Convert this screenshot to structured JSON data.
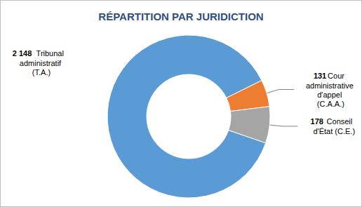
{
  "chart_data": {
    "type": "pie",
    "title": "RÉPARTITION PAR JURIDICTION",
    "categories": [
      "Tribunal administratif (T.A.)",
      "Cour administrative d'appel (C.A.A.)",
      "Conseil d'État (C.E.)"
    ],
    "values": [
      2148,
      131,
      178
    ],
    "value_labels": [
      "2 148",
      "131",
      "178"
    ],
    "colors": [
      "#5b9bd5",
      "#ed7d31",
      "#a5a5a5"
    ],
    "data_labels": true
  }
}
